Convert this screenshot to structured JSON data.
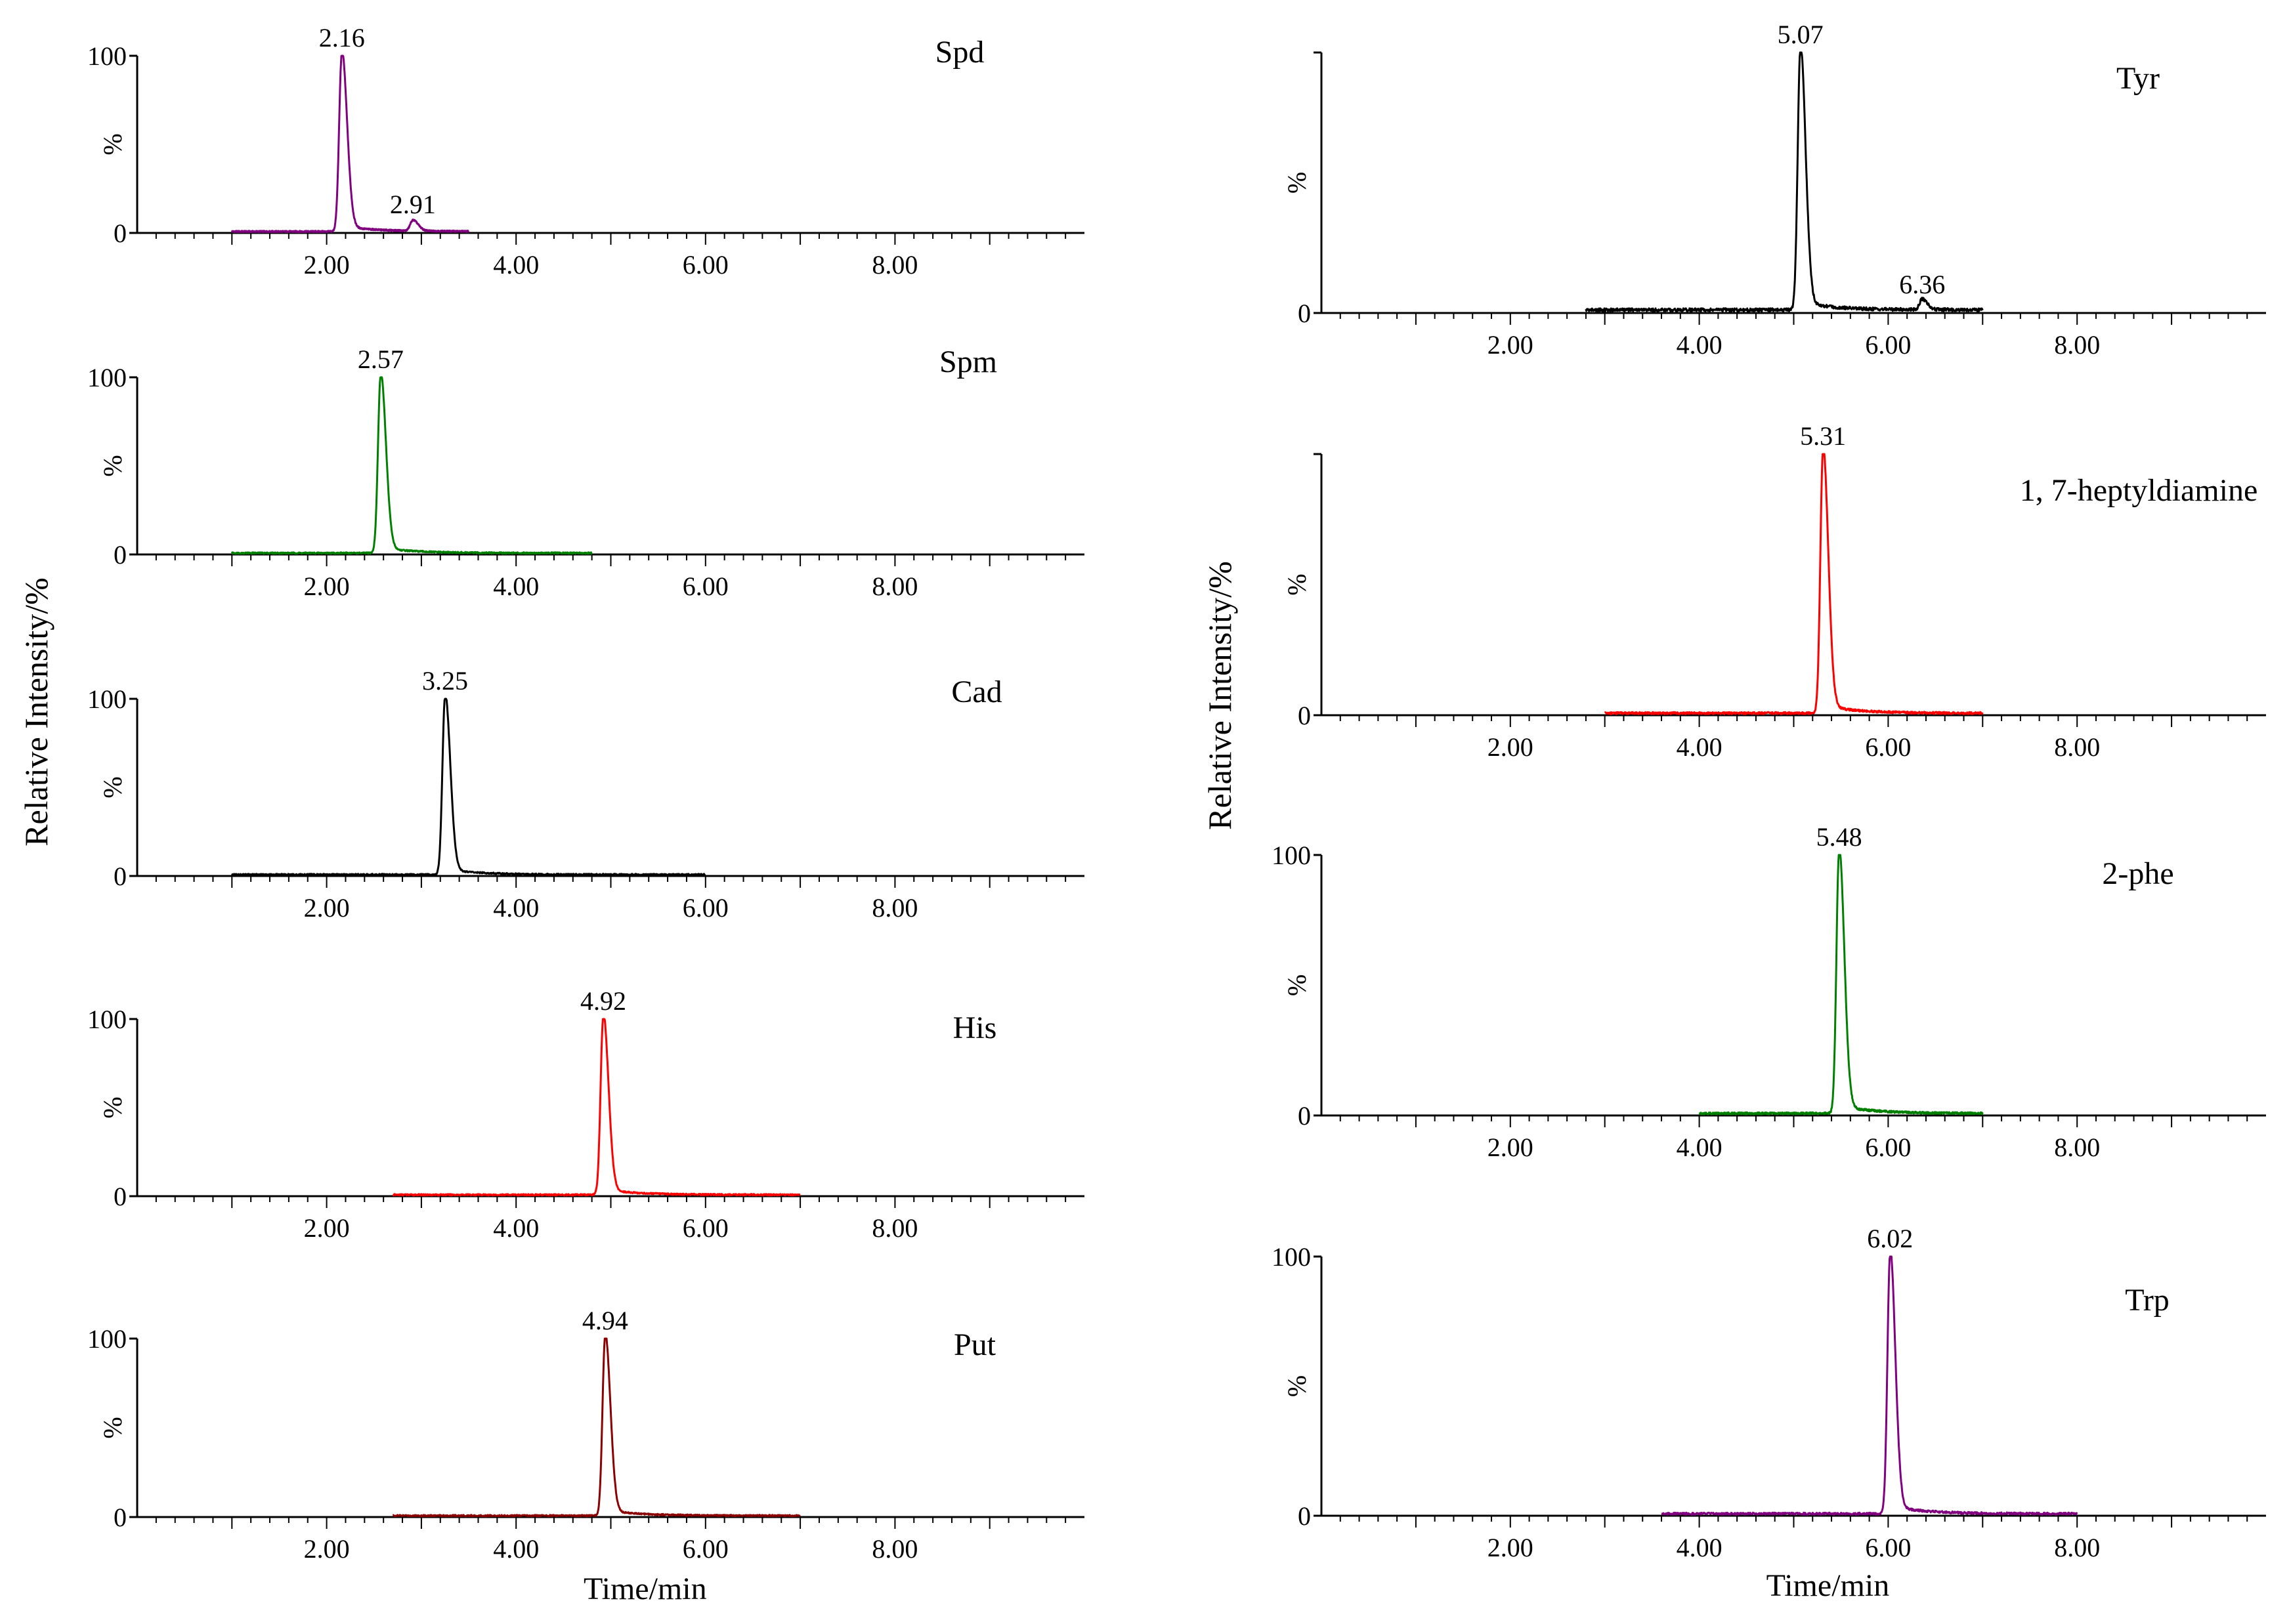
{
  "figure": {
    "left_ylabel": "Relative Intensity/%",
    "right_ylabel": "Relative Intensity/%",
    "left_xlabel": "Time/min",
    "right_xlabel": "Time/min"
  },
  "chart_data": [
    {
      "type": "line",
      "title": "Spd",
      "color": "#800080",
      "xlim": [
        0,
        10
      ],
      "ylim": [
        0,
        100
      ],
      "xticks": [
        "2.00",
        "4.00",
        "6.00",
        "8.00"
      ],
      "yticks": [
        "0",
        "%",
        "100"
      ],
      "xlabel": "",
      "ylabel": "%",
      "trace_range": [
        1.0,
        3.5
      ],
      "baseline": 0.8,
      "peaks": [
        {
          "rt": 2.16,
          "height": 100,
          "label": "2.16"
        },
        {
          "rt": 2.91,
          "height": 6,
          "label": "2.91"
        }
      ]
    },
    {
      "type": "line",
      "title": "Spm",
      "color": "#008000",
      "xlim": [
        0,
        10
      ],
      "ylim": [
        0,
        100
      ],
      "xticks": [
        "2.00",
        "4.00",
        "6.00",
        "8.00"
      ],
      "yticks": [
        "0",
        "%",
        "100"
      ],
      "xlabel": "",
      "ylabel": "%",
      "trace_range": [
        1.0,
        4.8
      ],
      "baseline": 0.8,
      "peaks": [
        {
          "rt": 2.57,
          "height": 100,
          "label": "2.57"
        }
      ]
    },
    {
      "type": "line",
      "title": "Cad",
      "color": "#000000",
      "xlim": [
        0,
        10
      ],
      "ylim": [
        0,
        100
      ],
      "xticks": [
        "2.00",
        "4.00",
        "6.00",
        "8.00"
      ],
      "yticks": [
        "0",
        "%",
        "100"
      ],
      "xlabel": "",
      "ylabel": "%",
      "trace_range": [
        1.0,
        6.0
      ],
      "baseline": 0.8,
      "peaks": [
        {
          "rt": 3.25,
          "height": 100,
          "label": "3.25"
        }
      ]
    },
    {
      "type": "line",
      "title": "His",
      "color": "#ff0000",
      "xlim": [
        0,
        10
      ],
      "ylim": [
        0,
        100
      ],
      "xticks": [
        "2.00",
        "4.00",
        "6.00",
        "8.00"
      ],
      "yticks": [
        "0",
        "%",
        "100"
      ],
      "xlabel": "",
      "ylabel": "%",
      "trace_range": [
        2.7,
        7.0
      ],
      "baseline": 0.8,
      "peaks": [
        {
          "rt": 4.92,
          "height": 100,
          "label": "4.92"
        }
      ]
    },
    {
      "type": "line",
      "title": "Put",
      "color": "#8b0000",
      "xlim": [
        0,
        10
      ],
      "ylim": [
        0,
        100
      ],
      "xticks": [
        "2.00",
        "4.00",
        "6.00",
        "8.00"
      ],
      "yticks": [
        "0",
        "%",
        "100"
      ],
      "xlabel": "Time/min",
      "ylabel": "%",
      "trace_range": [
        2.7,
        7.0
      ],
      "baseline": 0.8,
      "peaks": [
        {
          "rt": 4.94,
          "height": 100,
          "label": "4.94"
        }
      ]
    },
    {
      "type": "line",
      "title": "Tyr",
      "color": "#000000",
      "xlim": [
        0,
        10
      ],
      "ylim": [
        0,
        100
      ],
      "xticks": [
        "2.00",
        "4.00",
        "6.00",
        "8.00"
      ],
      "yticks": [
        "0",
        "%"
      ],
      "xlabel": "",
      "ylabel": "%",
      "trace_range": [
        2.8,
        7.0
      ],
      "baseline": 1.2,
      "peaks": [
        {
          "rt": 5.07,
          "height": 100,
          "label": "5.07"
        },
        {
          "rt": 6.36,
          "height": 4,
          "label": "6.36"
        }
      ]
    },
    {
      "type": "line",
      "title": "1, 7-heptyldiamine",
      "color": "#ff0000",
      "xlim": [
        0,
        10
      ],
      "ylim": [
        0,
        100
      ],
      "xticks": [
        "2.00",
        "4.00",
        "6.00",
        "8.00"
      ],
      "yticks": [
        "0",
        "%"
      ],
      "xlabel": "",
      "ylabel": "%",
      "trace_range": [
        3.0,
        7.0
      ],
      "baseline": 0.8,
      "peaks": [
        {
          "rt": 5.31,
          "height": 100,
          "label": "5.31"
        }
      ]
    },
    {
      "type": "line",
      "title": "2-phe",
      "color": "#008000",
      "xlim": [
        0,
        10
      ],
      "ylim": [
        0,
        100
      ],
      "xticks": [
        "2.00",
        "4.00",
        "6.00",
        "8.00"
      ],
      "yticks": [
        "0",
        "%",
        "100"
      ],
      "xlabel": "",
      "ylabel": "%",
      "trace_range": [
        4.0,
        7.0
      ],
      "baseline": 0.8,
      "peaks": [
        {
          "rt": 5.48,
          "height": 100,
          "label": "5.48"
        }
      ]
    },
    {
      "type": "line",
      "title": "Trp",
      "color": "#800080",
      "xlim": [
        0,
        10
      ],
      "ylim": [
        0,
        100
      ],
      "xticks": [
        "2.00",
        "4.00",
        "6.00",
        "8.00"
      ],
      "yticks": [
        "0",
        "%",
        "100"
      ],
      "xlabel": "Time/min",
      "ylabel": "%",
      "trace_range": [
        3.6,
        8.0
      ],
      "baseline": 0.8,
      "peaks": [
        {
          "rt": 6.02,
          "height": 100,
          "label": "6.02"
        }
      ]
    }
  ]
}
